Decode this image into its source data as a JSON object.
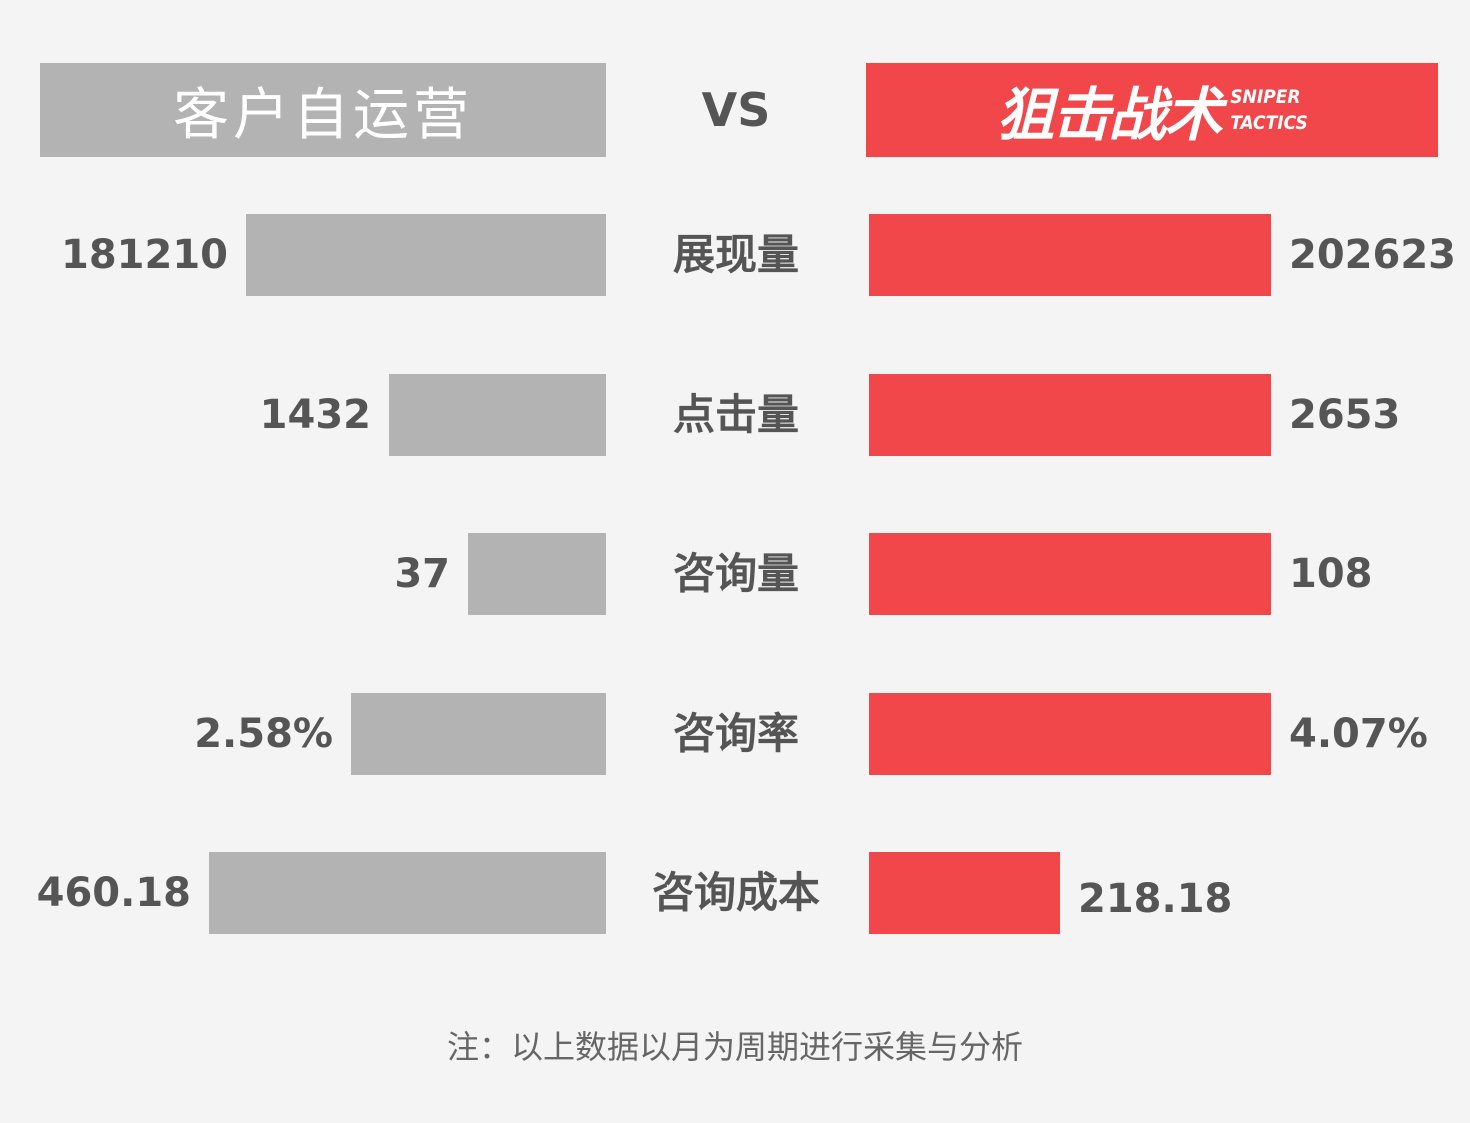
{
  "header": {
    "left_title": "客户自运营",
    "vs_label": "VS",
    "right_logo": "狙击战术",
    "right_logo_sub1": "SNIPER",
    "right_logo_sub2": "TACTICS"
  },
  "colors": {
    "left_bar": "#b3b3b3",
    "right_bar": "#f2474a",
    "text": "#555555",
    "background": "#f4f4f4"
  },
  "chart_data": {
    "type": "bar",
    "categories": [
      "展现量",
      "点击量",
      "咨询量",
      "咨询率",
      "咨询成本"
    ],
    "series": [
      {
        "name": "客户自运营",
        "values": [
          181210,
          1432,
          37,
          2.58,
          460.18
        ],
        "labels": [
          "181210",
          "1432",
          "37",
          "2.58%",
          "460.18"
        ]
      },
      {
        "name": "狙击战术",
        "values": [
          202623,
          2653,
          108,
          4.07,
          218.18
        ],
        "labels": [
          "202623",
          "2653",
          "108",
          "4.07%",
          "218.18"
        ]
      }
    ]
  },
  "note": "注：以上数据以月为周期进行采集与分析"
}
